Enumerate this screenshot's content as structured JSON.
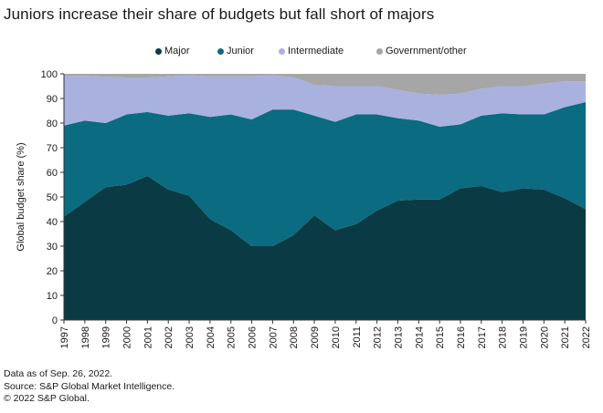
{
  "title": "Juniors increase their share of budgets but fall short of majors",
  "footnotes": [
    "Data as of Sep. 26, 2022.",
    "Source: S&P Global Market Intelligence.",
    "© 2022 S&P Global."
  ],
  "colors": {
    "major": "#0a3b45",
    "junior": "#0b6b80",
    "intermediate": "#a9b1df",
    "government_other": "#a6a6a6"
  },
  "chart_data": {
    "type": "area",
    "stacked": true,
    "ylabel": "Global budget share (%)",
    "xlabel": "",
    "ylim": [
      0,
      100
    ],
    "yticks": [
      0,
      10,
      20,
      30,
      40,
      50,
      60,
      70,
      80,
      90,
      100
    ],
    "legend_position": "top-center",
    "grid": false,
    "x": [
      "1997",
      "1998",
      "1999",
      "2000",
      "2001",
      "2002",
      "2003",
      "2004",
      "2005",
      "2006",
      "2007",
      "2008",
      "2009",
      "2010",
      "2011",
      "2012",
      "2013",
      "2014",
      "2015",
      "2016",
      "2017",
      "2018",
      "2019",
      "2020",
      "2021",
      "2022"
    ],
    "series": [
      {
        "name": "Major",
        "color_key": "major",
        "values": [
          42,
          48,
          54,
          55,
          58.5,
          53,
          50.5,
          41,
          36.5,
          30,
          30,
          34.5,
          42.5,
          36.5,
          39,
          44.5,
          48.5,
          49,
          49,
          53.5,
          54.5,
          52,
          53.5,
          53,
          49.5,
          45
        ]
      },
      {
        "name": "Junior",
        "color_key": "junior",
        "values": [
          37,
          33,
          26,
          28.5,
          26,
          30,
          33.5,
          41.5,
          47,
          51.5,
          55.5,
          51,
          40.5,
          44,
          44.5,
          39,
          33.5,
          32,
          29.5,
          26,
          28.5,
          32,
          30,
          30.5,
          37,
          43.5
        ]
      },
      {
        "name": "Intermediate",
        "color_key": "intermediate",
        "values": [
          20.2,
          18.2,
          18.8,
          15,
          14,
          16,
          15.5,
          16.5,
          15.5,
          17.5,
          14,
          13,
          12.5,
          14.5,
          11.5,
          11.5,
          11.5,
          11,
          13,
          12.5,
          11,
          11,
          11.5,
          12.5,
          10.5,
          8.5
        ]
      },
      {
        "name": "Government/other",
        "color_key": "government_other",
        "values": [
          0.8,
          0.8,
          1.2,
          1.5,
          1.5,
          1,
          0.5,
          1,
          1,
          1,
          0.5,
          1.5,
          4.5,
          5,
          5,
          5,
          6.5,
          8,
          8.5,
          8,
          6,
          5,
          5,
          4,
          3,
          3
        ]
      }
    ]
  }
}
